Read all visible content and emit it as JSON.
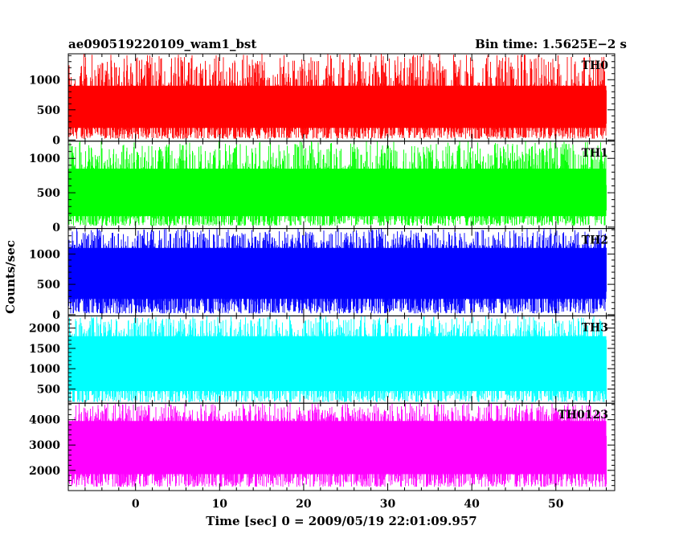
{
  "chart_data": {
    "type": "line",
    "title_left": "ae090519220109_wam1_bst",
    "title_right": "Bin time: 1.5625E−2 s",
    "xlabel": "Time [sec] 0 = 2009/05/19 22:01:09.957",
    "ylabel": "Counts/sec",
    "xlim": [
      -8,
      57
    ],
    "x_ticks": [
      0,
      10,
      20,
      30,
      40,
      50
    ],
    "x_data_range": [
      -8,
      56
    ],
    "bin_time_s": 0.015625,
    "panels": [
      {
        "name": "TH0",
        "color": "#ff0000",
        "ylim": [
          -20,
          1430
        ],
        "y_ticks": [
          0,
          500,
          1000
        ],
        "mean": 600,
        "low_range": [
          20,
          200
        ],
        "high_range": [
          900,
          1430
        ]
      },
      {
        "name": "TH1",
        "color": "#00ff00",
        "ylim": [
          -20,
          1250
        ],
        "y_ticks": [
          0,
          500,
          1000
        ],
        "mean": 560,
        "low_range": [
          20,
          160
        ],
        "high_range": [
          850,
          1250
        ]
      },
      {
        "name": "TH2",
        "color": "#0000ff",
        "ylim": [
          -20,
          1420
        ],
        "y_ticks": [
          0,
          500,
          1000
        ],
        "mean": 700,
        "low_range": [
          20,
          260
        ],
        "high_range": [
          1100,
          1420
        ]
      },
      {
        "name": "TH3",
        "color": "#00ffff",
        "ylim": [
          150,
          2300
        ],
        "y_ticks": [
          500,
          1000,
          1500,
          2000
        ],
        "mean": 1200,
        "low_range": [
          180,
          450
        ],
        "high_range": [
          1800,
          2300
        ]
      },
      {
        "name": "TH0123",
        "color": "#ff00ff",
        "ylim": [
          1200,
          4650
        ],
        "y_ticks": [
          2000,
          3000,
          4000
        ],
        "mean": 3000,
        "low_range": [
          1350,
          1850
        ],
        "high_range": [
          3950,
          4650
        ]
      }
    ]
  }
}
